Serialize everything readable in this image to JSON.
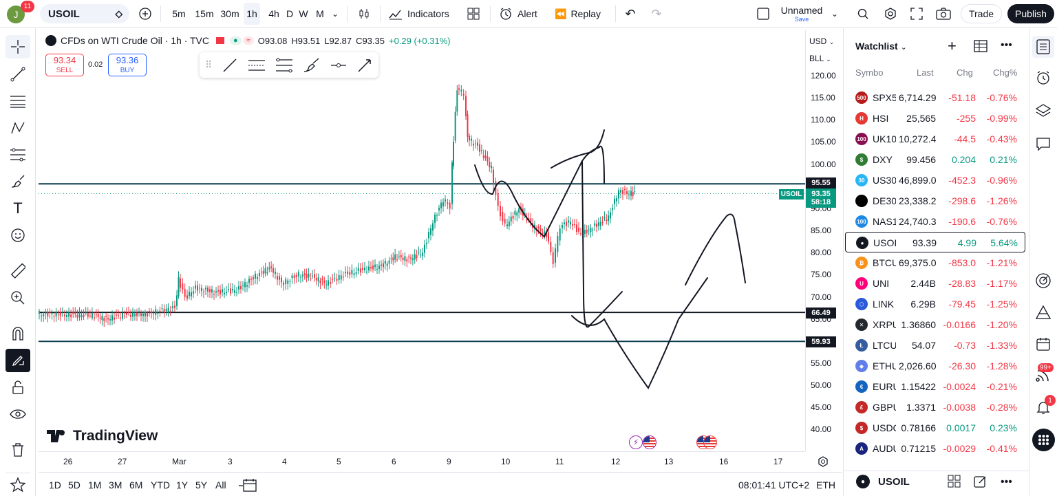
{
  "topbar": {
    "avatar": "J",
    "notifications": "11",
    "symbol": "USOIL",
    "intervals": [
      "5m",
      "15m",
      "30m",
      "1h",
      "4h",
      "D",
      "W",
      "M"
    ],
    "indicators": "Indicators",
    "alert": "Alert",
    "replay": "Replay",
    "layout_name": "Unnamed",
    "save": "Save",
    "trade": "Trade",
    "publish": "Publish"
  },
  "legend": {
    "title": "CFDs on WTI Crude Oil · 1h · TVC",
    "o": "O93.08",
    "h": "H93.51",
    "l": "L92.87",
    "c": "C93.35",
    "chg": "+0.29 (+0.31%)",
    "sell_price": "93.34",
    "sell": "SELL",
    "spread": "0.02",
    "buy_price": "93.36",
    "buy": "BUY"
  },
  "price_axis": {
    "currency": "USD",
    "unit": "BLL",
    "ticks": [
      "120.00",
      "115.00",
      "110.00",
      "105.00",
      "100.00",
      "95.00",
      "90.00",
      "85.00",
      "80.00",
      "75.00",
      "70.00",
      "65.00",
      "60.00",
      "55.00",
      "50.00",
      "45.00",
      "40.00"
    ],
    "line_95": "95.55",
    "last": "93.35",
    "countdown": "58:18",
    "symbol_tag": "USOIL",
    "line_66": "66.49",
    "line_60": "59.93"
  },
  "time_axis": {
    "ticks": [
      "26",
      "27",
      "Mar",
      "3",
      "4",
      "5",
      "6",
      "9",
      "10",
      "11",
      "12",
      "13",
      "16",
      "17"
    ]
  },
  "bottombar": {
    "ranges": [
      "1D",
      "5D",
      "1M",
      "3M",
      "6M",
      "YTD",
      "1Y",
      "5Y",
      "All"
    ],
    "clock": "08:01:41 UTC+2",
    "session": "ETH"
  },
  "watermark": "TradingView",
  "watchlist": {
    "title": "Watchlist",
    "headers": [
      "Symbo",
      "Last",
      "Chg",
      "Chg%"
    ],
    "rows": [
      {
        "sym": "SPX5",
        "last": "6,714.29",
        "chg": "-51.18",
        "pct": "-0.76%",
        "color": "#b71c1c",
        "icon": "500",
        "dir": "red"
      },
      {
        "sym": "HSI",
        "last": "25,565",
        "chg": "-255",
        "pct": "-0.99%",
        "color": "#e53935",
        "icon": "H",
        "dir": "red"
      },
      {
        "sym": "UK10",
        "last": "10,272.4",
        "chg": "-44.5",
        "pct": "-0.43%",
        "color": "#880e4f",
        "icon": "100",
        "dir": "red"
      },
      {
        "sym": "DXY",
        "last": "99.456",
        "chg": "0.204",
        "pct": "0.21%",
        "color": "#2e7d32",
        "icon": "$",
        "dir": "green"
      },
      {
        "sym": "US30",
        "last": "46,899.0",
        "chg": "-452.3",
        "pct": "-0.96%",
        "color": "#29b6f6",
        "icon": "30",
        "dir": "red"
      },
      {
        "sym": "DE30",
        "last": "23,338.2",
        "chg": "-298.6",
        "pct": "-1.26%",
        "color": "#000000",
        "icon": "",
        "dir": "red"
      },
      {
        "sym": "NAS1",
        "last": "24,740.3",
        "chg": "-190.6",
        "pct": "-0.76%",
        "color": "#1e88e5",
        "icon": "100",
        "dir": "red"
      },
      {
        "sym": "USOI",
        "last": "93.39",
        "chg": "4.99",
        "pct": "5.64%",
        "color": "#131722",
        "icon": "●",
        "dir": "green"
      },
      {
        "sym": "BTCU",
        "last": "69,375.0",
        "chg": "-853.0",
        "pct": "-1.21%",
        "color": "#f7931a",
        "icon": "₿",
        "dir": "red"
      },
      {
        "sym": "UNI",
        "last": "2.44B",
        "chg": "-28.83",
        "pct": "-1.17%",
        "color": "#ff007a",
        "icon": "U",
        "dir": "red"
      },
      {
        "sym": "LINK",
        "last": "6.29B",
        "chg": "-79.45",
        "pct": "-1.25%",
        "color": "#2a5ada",
        "icon": "⬡",
        "dir": "red"
      },
      {
        "sym": "XRPU",
        "last": "1.36860",
        "chg": "-0.0166",
        "pct": "-1.20%",
        "color": "#23292f",
        "icon": "✕",
        "dir": "red"
      },
      {
        "sym": "LTCU",
        "last": "54.07",
        "chg": "-0.73",
        "pct": "-1.33%",
        "color": "#345d9d",
        "icon": "Ł",
        "dir": "red"
      },
      {
        "sym": "ETHU",
        "last": "2,026.60",
        "chg": "-26.30",
        "pct": "-1.28%",
        "color": "#627eea",
        "icon": "◆",
        "dir": "red"
      },
      {
        "sym": "EURU",
        "last": "1.15422",
        "chg": "-0.0024",
        "pct": "-0.21%",
        "color": "#1565c0",
        "icon": "€",
        "dir": "red"
      },
      {
        "sym": "GBPU",
        "last": "1.3371",
        "chg": "-0.0038",
        "pct": "-0.28%",
        "color": "#c62828",
        "icon": "£",
        "dir": "red"
      },
      {
        "sym": "USDC",
        "last": "0.78166",
        "chg": "0.0017",
        "pct": "0.23%",
        "color": "#c62828",
        "icon": "$",
        "dir": "green"
      },
      {
        "sym": "AUDU",
        "last": "0.71215",
        "chg": "-0.0029",
        "pct": "-0.41%",
        "color": "#1a237e",
        "icon": "A",
        "dir": "red"
      }
    ],
    "footer_symbol": "USOIL"
  },
  "rightbar": {
    "badge_99": "99+",
    "badge_1": "1"
  }
}
